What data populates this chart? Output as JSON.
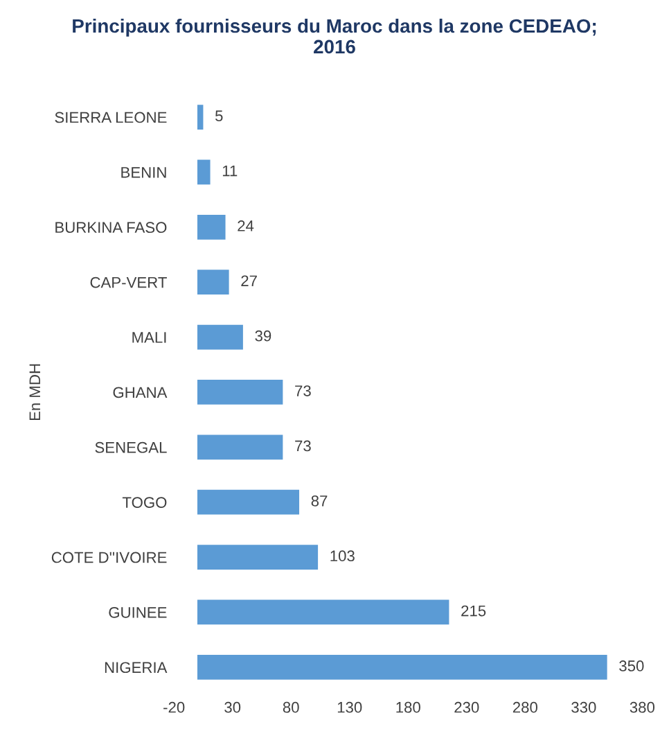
{
  "chart_data": {
    "type": "bar",
    "orientation": "horizontal",
    "title": "Principaux fournisseurs du Maroc dans la zone CEDEAO;\n2016",
    "ylabel": "En MDH",
    "categories": [
      "SIERRA LEONE",
      "BENIN",
      "BURKINA FASO",
      "CAP-VERT",
      "MALI",
      "GHANA",
      "SENEGAL",
      "TOGO",
      "COTE D''IVOIRE",
      "GUINEE",
      "NIGERIA"
    ],
    "values": [
      5,
      11,
      24,
      27,
      39,
      73,
      73,
      87,
      103,
      215,
      350
    ],
    "color": "#5b9bd5",
    "xlim": [
      -20,
      380
    ],
    "xticks": [
      -20,
      30,
      80,
      130,
      180,
      230,
      280,
      330,
      380
    ],
    "grid": false,
    "data_labels": true
  }
}
